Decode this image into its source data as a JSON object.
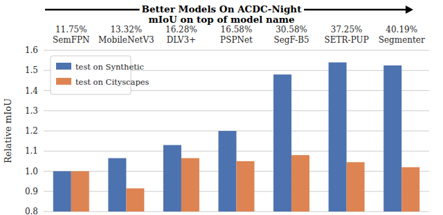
{
  "chart_data": {
    "type": "bar",
    "title": "Better Models On ACDC-Night",
    "subtitle": "mIoU on top of model name",
    "y_label": "Relative mIoU",
    "categories": [
      "SemFPN",
      "MobileNetV3",
      "DLV3+",
      "PSPNet",
      "SegF-B5",
      "SETR-PUP",
      "Segmenter"
    ],
    "annotations": [
      "11.75%",
      "13.32%",
      "16.28%",
      "16.58%",
      "30.58%",
      "37.25%",
      "40.19%"
    ],
    "series": [
      {
        "name": "test on Synthetic",
        "color": "#4c72b0",
        "values": [
          1.0,
          1.065,
          1.13,
          1.2,
          1.48,
          1.54,
          1.525
        ]
      },
      {
        "name": "test on Cityscapes",
        "color": "#dd8452",
        "values": [
          1.0,
          0.915,
          1.065,
          1.05,
          1.08,
          1.045,
          1.02
        ]
      }
    ],
    "ylim": [
      0.8,
      1.6
    ],
    "yticks": [
      0.8,
      0.9,
      {
        "value": 1,
        "label": "1.0"
      },
      1.1,
      1.2,
      1.3,
      1.4,
      1.5,
      1.6
    ],
    "grid": true,
    "legend": "upper left"
  }
}
